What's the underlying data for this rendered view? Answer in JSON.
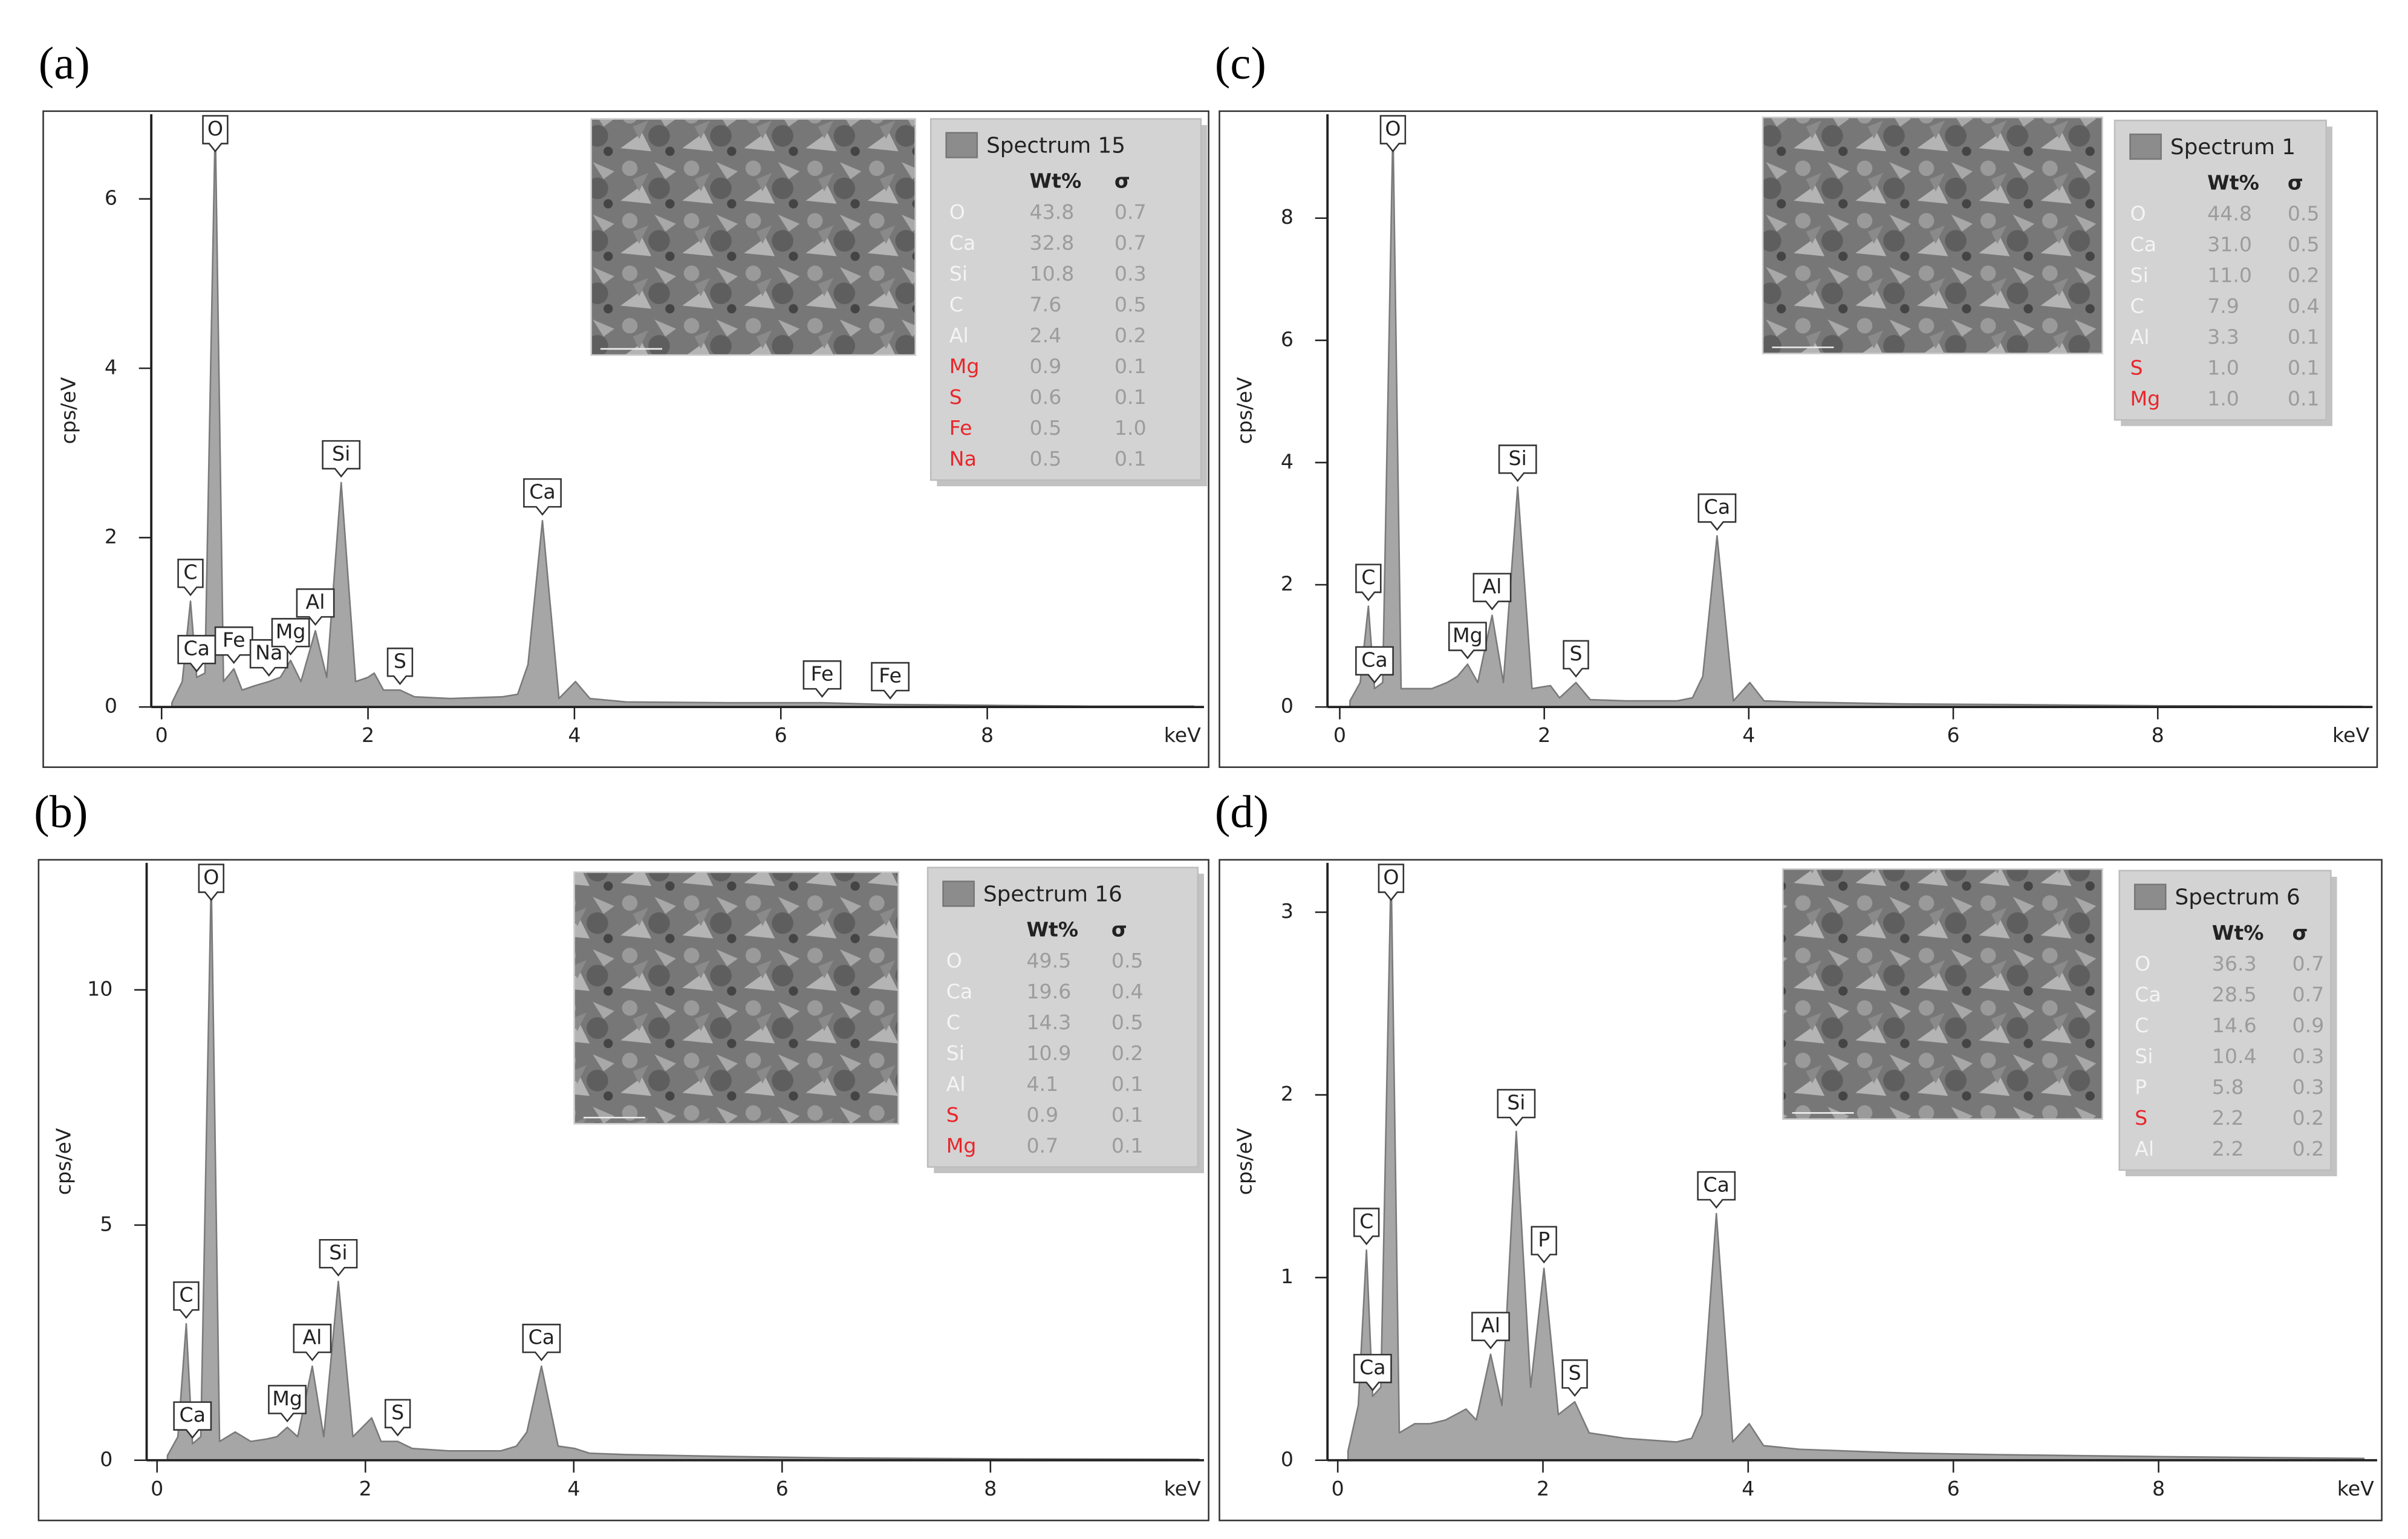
{
  "chart_data": [
    {
      "type": "area",
      "title": "(a)",
      "ylabel": "cps/eV",
      "xlabel": "keV",
      "xlim": [
        -0.1,
        10.1
      ],
      "ylim": [
        0,
        7
      ],
      "xticks": [
        0,
        2,
        4,
        6,
        8
      ],
      "yticks": [
        0,
        2,
        4,
        6
      ],
      "x": [
        0.1,
        0.2,
        0.28,
        0.34,
        0.42,
        0.52,
        0.6,
        0.7,
        0.78,
        0.9,
        1.04,
        1.15,
        1.25,
        1.35,
        1.49,
        1.6,
        1.74,
        1.88,
        2.0,
        2.06,
        2.15,
        2.31,
        2.45,
        2.8,
        3.3,
        3.45,
        3.55,
        3.69,
        3.85,
        4.01,
        4.15,
        4.5,
        5.5,
        6.4,
        7.0,
        8,
        9,
        10
      ],
      "series": [
        {
          "name": "Spectrum 15",
          "color": "#a6a6a6",
          "values": [
            0.05,
            0.3,
            1.25,
            0.35,
            0.4,
            6.9,
            0.3,
            0.45,
            0.2,
            0.25,
            0.3,
            0.35,
            0.55,
            0.3,
            0.9,
            0.35,
            2.65,
            0.3,
            0.35,
            0.4,
            0.2,
            0.2,
            0.12,
            0.1,
            0.12,
            0.15,
            0.5,
            2.2,
            0.1,
            0.3,
            0.1,
            0.06,
            0.05,
            0.05,
            0.03,
            0.02,
            0.01,
            0.01
          ]
        }
      ],
      "peaks": [
        {
          "label": "O",
          "x": 0.52
        },
        {
          "label": "C",
          "x": 0.28
        },
        {
          "label": "Ca",
          "x": 0.34
        },
        {
          "label": "Fe",
          "x": 0.7
        },
        {
          "label": "Na",
          "x": 1.04
        },
        {
          "label": "Mg",
          "x": 1.25
        },
        {
          "label": "Al",
          "x": 1.49
        },
        {
          "label": "Si",
          "x": 1.74
        },
        {
          "label": "S",
          "x": 2.31
        },
        {
          "label": "Ca",
          "x": 3.69
        },
        {
          "label": "Fe",
          "x": 6.4
        },
        {
          "label": "Fe",
          "x": 7.06
        }
      ],
      "table": {
        "columns": [
          "Wt%",
          "σ"
        ],
        "rows": [
          {
            "element": "O",
            "wt": "43.8",
            "sigma": "0.7",
            "color": "#f4f4f4"
          },
          {
            "element": "Ca",
            "wt": "32.8",
            "sigma": "0.7",
            "color": "#f4f4f4"
          },
          {
            "element": "Si",
            "wt": "10.8",
            "sigma": "0.3",
            "color": "#f4f4f4"
          },
          {
            "element": "C",
            "wt": "7.6",
            "sigma": "0.5",
            "color": "#f4f4f4"
          },
          {
            "element": "Al",
            "wt": "2.4",
            "sigma": "0.2",
            "color": "#f4f4f4"
          },
          {
            "element": "Mg",
            "wt": "0.9",
            "sigma": "0.1",
            "color": "#e8262b"
          },
          {
            "element": "S",
            "wt": "0.6",
            "sigma": "0.1",
            "color": "#e8262b"
          },
          {
            "element": "Fe",
            "wt": "0.5",
            "sigma": "1.0",
            "color": "#e8262b"
          },
          {
            "element": "Na",
            "wt": "0.5",
            "sigma": "0.1",
            "color": "#e8262b"
          }
        ]
      }
    },
    {
      "type": "area",
      "title": "(b)",
      "ylabel": "cps/eV",
      "xlabel": "keV",
      "xlim": [
        -0.1,
        10.05
      ],
      "ylim": [
        0,
        12.7
      ],
      "xticks": [
        0,
        2,
        4,
        6,
        8
      ],
      "yticks": [
        0,
        5,
        10
      ],
      "x": [
        0.1,
        0.2,
        0.28,
        0.34,
        0.42,
        0.52,
        0.6,
        0.75,
        0.9,
        1.05,
        1.15,
        1.25,
        1.35,
        1.49,
        1.6,
        1.74,
        1.88,
        2.06,
        2.15,
        2.31,
        2.45,
        2.8,
        3.3,
        3.45,
        3.55,
        3.69,
        3.85,
        4.01,
        4.15,
        4.5,
        5.5,
        6.5,
        8,
        10
      ],
      "series": [
        {
          "name": "Spectrum 16",
          "color": "#a6a6a6",
          "values": [
            0.1,
            0.5,
            2.9,
            0.35,
            0.5,
            12.4,
            0.4,
            0.6,
            0.4,
            0.45,
            0.5,
            0.7,
            0.5,
            2.0,
            0.5,
            3.8,
            0.5,
            0.9,
            0.4,
            0.4,
            0.25,
            0.2,
            0.2,
            0.3,
            0.6,
            2.0,
            0.3,
            0.25,
            0.15,
            0.12,
            0.08,
            0.05,
            0.03,
            0.02
          ]
        }
      ],
      "peaks": [
        {
          "label": "O",
          "x": 0.52
        },
        {
          "label": "C",
          "x": 0.28
        },
        {
          "label": "Ca",
          "x": 0.34
        },
        {
          "label": "Mg",
          "x": 1.25
        },
        {
          "label": "Al",
          "x": 1.49
        },
        {
          "label": "Si",
          "x": 1.74
        },
        {
          "label": "S",
          "x": 2.31
        },
        {
          "label": "Ca",
          "x": 3.69
        }
      ],
      "table": {
        "columns": [
          "Wt%",
          "σ"
        ],
        "rows": [
          {
            "element": "O",
            "wt": "49.5",
            "sigma": "0.5",
            "color": "#f4f4f4"
          },
          {
            "element": "Ca",
            "wt": "19.6",
            "sigma": "0.4",
            "color": "#f4f4f4"
          },
          {
            "element": "C",
            "wt": "14.3",
            "sigma": "0.5",
            "color": "#f4f4f4"
          },
          {
            "element": "Si",
            "wt": "10.9",
            "sigma": "0.2",
            "color": "#f4f4f4"
          },
          {
            "element": "Al",
            "wt": "4.1",
            "sigma": "0.1",
            "color": "#f4f4f4"
          },
          {
            "element": "S",
            "wt": "0.9",
            "sigma": "0.1",
            "color": "#e8262b"
          },
          {
            "element": "Mg",
            "wt": "0.7",
            "sigma": "0.1",
            "color": "#e8262b"
          }
        ]
      }
    },
    {
      "type": "area",
      "title": "(c)",
      "ylabel": "cps/eV",
      "xlabel": "keV",
      "xlim": [
        -0.12,
        10.1
      ],
      "ylim": [
        0,
        9.7
      ],
      "xticks": [
        0,
        2,
        4,
        6,
        8
      ],
      "yticks": [
        0,
        2,
        4,
        6,
        8
      ],
      "x": [
        0.1,
        0.2,
        0.28,
        0.34,
        0.42,
        0.52,
        0.6,
        0.75,
        0.9,
        1.05,
        1.15,
        1.25,
        1.35,
        1.49,
        1.6,
        1.74,
        1.88,
        2.06,
        2.15,
        2.31,
        2.45,
        2.8,
        3.3,
        3.45,
        3.55,
        3.69,
        3.85,
        4.01,
        4.15,
        4.5,
        5.5,
        6.5,
        8,
        10
      ],
      "series": [
        {
          "name": "Spectrum 1",
          "color": "#a6a6a6",
          "values": [
            0.1,
            0.4,
            1.65,
            0.3,
            0.4,
            9.5,
            0.3,
            0.3,
            0.3,
            0.4,
            0.5,
            0.7,
            0.4,
            1.5,
            0.4,
            3.6,
            0.3,
            0.35,
            0.15,
            0.4,
            0.12,
            0.1,
            0.1,
            0.15,
            0.5,
            2.8,
            0.1,
            0.4,
            0.1,
            0.08,
            0.05,
            0.04,
            0.02,
            0.01
          ]
        }
      ],
      "peaks": [
        {
          "label": "O",
          "x": 0.52
        },
        {
          "label": "C",
          "x": 0.28
        },
        {
          "label": "Ca",
          "x": 0.34
        },
        {
          "label": "Mg",
          "x": 1.25
        },
        {
          "label": "Al",
          "x": 1.49
        },
        {
          "label": "Si",
          "x": 1.74
        },
        {
          "label": "S",
          "x": 2.31
        },
        {
          "label": "Ca",
          "x": 3.69
        }
      ],
      "table": {
        "columns": [
          "Wt%",
          "σ"
        ],
        "rows": [
          {
            "element": "O",
            "wt": "44.8",
            "sigma": "0.5",
            "color": "#f4f4f4"
          },
          {
            "element": "Ca",
            "wt": "31.0",
            "sigma": "0.5",
            "color": "#f4f4f4"
          },
          {
            "element": "Si",
            "wt": "11.0",
            "sigma": "0.2",
            "color": "#f4f4f4"
          },
          {
            "element": "C",
            "wt": "7.9",
            "sigma": "0.4",
            "color": "#f4f4f4"
          },
          {
            "element": "Al",
            "wt": "3.3",
            "sigma": "0.1",
            "color": "#f4f4f4"
          },
          {
            "element": "S",
            "wt": "1.0",
            "sigma": "0.1",
            "color": "#e8262b"
          },
          {
            "element": "Mg",
            "wt": "1.0",
            "sigma": "0.1",
            "color": "#e8262b"
          }
        ]
      }
    },
    {
      "type": "area",
      "title": "(d)",
      "ylabel": "cps/eV",
      "xlabel": "keV",
      "xlim": [
        -0.1,
        10.13
      ],
      "ylim": [
        0,
        3.27
      ],
      "xticks": [
        0,
        2,
        4,
        6,
        8
      ],
      "yticks": [
        0,
        1,
        2,
        3
      ],
      "x": [
        0.1,
        0.2,
        0.28,
        0.34,
        0.42,
        0.52,
        0.6,
        0.75,
        0.9,
        1.05,
        1.15,
        1.25,
        1.35,
        1.49,
        1.6,
        1.74,
        1.88,
        2.01,
        2.15,
        2.31,
        2.45,
        2.8,
        3.3,
        3.45,
        3.55,
        3.69,
        3.85,
        4.01,
        4.15,
        4.5,
        5.5,
        6.5,
        8,
        10
      ],
      "series": [
        {
          "name": "Spectrum 6",
          "color": "#a6a6a6",
          "values": [
            0.05,
            0.3,
            1.15,
            0.35,
            0.4,
            3.25,
            0.15,
            0.2,
            0.2,
            0.22,
            0.25,
            0.28,
            0.22,
            0.58,
            0.3,
            1.8,
            0.4,
            1.05,
            0.25,
            0.32,
            0.15,
            0.12,
            0.1,
            0.12,
            0.25,
            1.35,
            0.1,
            0.2,
            0.08,
            0.06,
            0.04,
            0.03,
            0.02,
            0.01
          ]
        }
      ],
      "peaks": [
        {
          "label": "O",
          "x": 0.52
        },
        {
          "label": "C",
          "x": 0.28
        },
        {
          "label": "Ca",
          "x": 0.34
        },
        {
          "label": "Al",
          "x": 1.49
        },
        {
          "label": "Si",
          "x": 1.74
        },
        {
          "label": "P",
          "x": 2.01
        },
        {
          "label": "S",
          "x": 2.31
        },
        {
          "label": "Ca",
          "x": 3.69
        }
      ],
      "table": {
        "columns": [
          "Wt%",
          "σ"
        ],
        "rows": [
          {
            "element": "O",
            "wt": "36.3",
            "sigma": "0.7",
            "color": "#f4f4f4"
          },
          {
            "element": "Ca",
            "wt": "28.5",
            "sigma": "0.7",
            "color": "#f4f4f4"
          },
          {
            "element": "C",
            "wt": "14.6",
            "sigma": "0.9",
            "color": "#f4f4f4"
          },
          {
            "element": "Si",
            "wt": "10.4",
            "sigma": "0.3",
            "color": "#f4f4f4"
          },
          {
            "element": "P",
            "wt": "5.8",
            "sigma": "0.3",
            "color": "#f4f4f4"
          },
          {
            "element": "S",
            "wt": "2.2",
            "sigma": "0.2",
            "color": "#e8262b"
          },
          {
            "element": "Al",
            "wt": "2.2",
            "sigma": "0.2",
            "color": "#f4f4f4"
          }
        ]
      }
    }
  ]
}
